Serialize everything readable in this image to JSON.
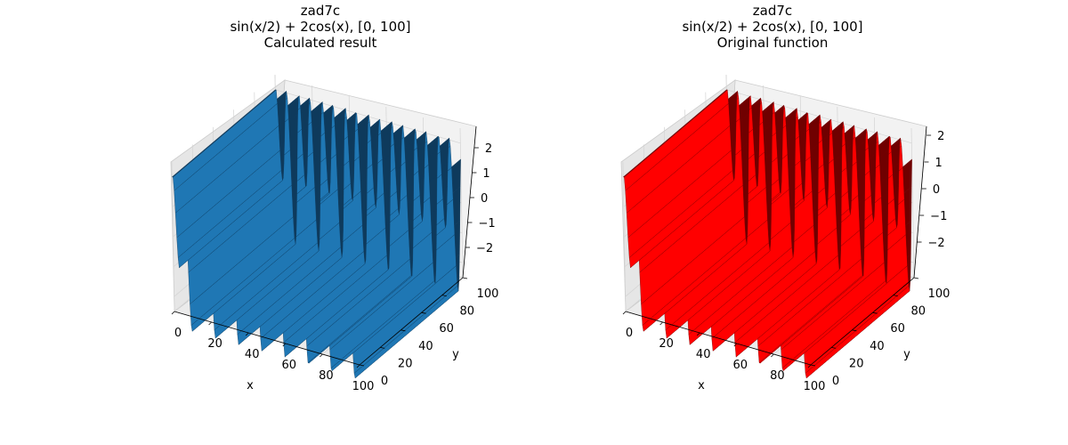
{
  "chart_data": [
    {
      "type": "surface3d",
      "title": [
        "zad7c",
        "sin(x/2) + 2cos(x), [0, 100]",
        "Calculated result"
      ],
      "xlabel": "x",
      "ylabel": "y",
      "zlabel": "",
      "xlim": [
        0,
        100
      ],
      "ylim": [
        0,
        100
      ],
      "zlim": [
        -2.5,
        2.5
      ],
      "xticks": [
        "0",
        "20",
        "40",
        "60",
        "80",
        "100"
      ],
      "yticks": [
        "0",
        "20",
        "40",
        "60",
        "80",
        "100"
      ],
      "zticks": [
        "2",
        "1",
        "0",
        "−1",
        "−2"
      ],
      "function": "sin(x/2) + 2cos(x)",
      "color": "#1f77b4",
      "edge_color": "#0e3a5c"
    },
    {
      "type": "surface3d",
      "title": [
        "zad7c",
        "sin(x/2) + 2cos(x), [0, 100]",
        "Original function"
      ],
      "xlabel": "x",
      "ylabel": "y",
      "zlabel": "",
      "xlim": [
        0,
        100
      ],
      "ylim": [
        0,
        100
      ],
      "zlim": [
        -2.5,
        2.5
      ],
      "xticks": [
        "0",
        "20",
        "40",
        "60",
        "80",
        "100"
      ],
      "yticks": [
        "0",
        "20",
        "40",
        "60",
        "80",
        "100"
      ],
      "zticks": [
        "2",
        "1",
        "0",
        "−1",
        "−2"
      ],
      "function": "sin(x/2) + 2cos(x)",
      "color": "#ff0000",
      "edge_color": "#700000"
    }
  ]
}
